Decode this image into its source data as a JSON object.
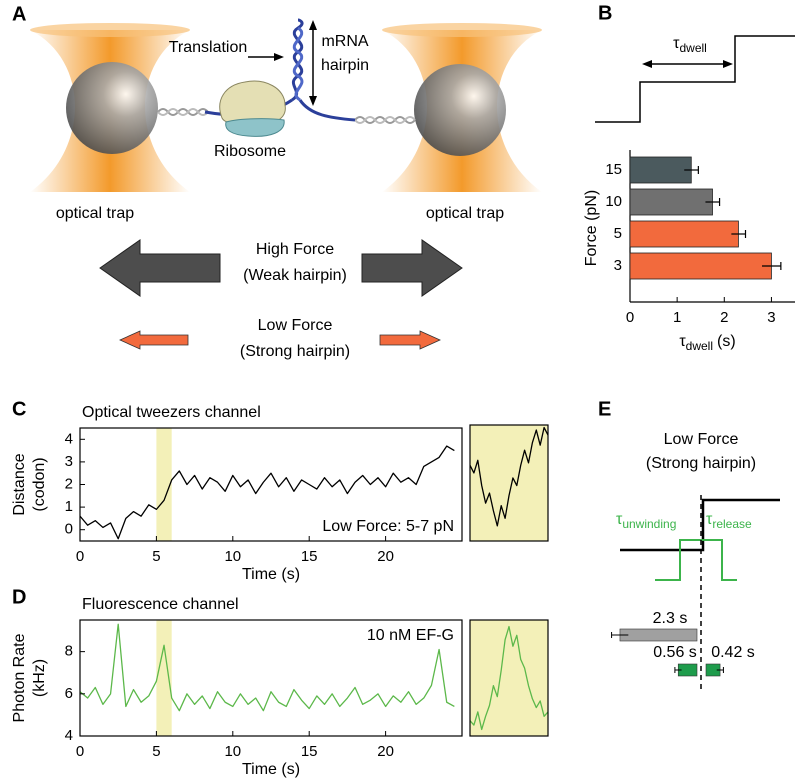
{
  "panel_labels": [
    "A",
    "B",
    "C",
    "D",
    "E"
  ],
  "diagram": {
    "translation": "Translation",
    "mrna_hairpin": [
      "mRNA",
      "hairpin"
    ],
    "ribosome": "Ribosome",
    "trap_labels": [
      "optical trap",
      "optical trap"
    ],
    "high_force": [
      "High Force",
      "(Weak hairpin)"
    ],
    "low_force": [
      "Low Force",
      "(Strong hairpin)"
    ]
  },
  "dwell_schematic": {
    "label": {
      "symbol": "τ",
      "sub": "dwell"
    }
  },
  "schematic_e": {
    "title": [
      "Low Force",
      "(Strong hairpin)"
    ],
    "labels": [
      {
        "symbol": "τ",
        "sub": "unwinding"
      },
      {
        "symbol": "τ",
        "sub": "release"
      }
    ],
    "color": "#3cb44b"
  },
  "chart_data": [
    {
      "type": "bar",
      "orientation": "horizontal",
      "categories": [
        "15",
        "10",
        "5",
        "3"
      ],
      "values": [
        1.3,
        1.75,
        2.3,
        3.0
      ],
      "errors": [
        0.15,
        0.15,
        0.15,
        0.2
      ],
      "colors": [
        "#4b5a5e",
        "#707070",
        "#f26a3d",
        "#f26a3d"
      ],
      "xlim": [
        0,
        3.5
      ],
      "xticks": [
        0,
        1,
        2,
        3
      ],
      "xlabel": {
        "symbol": "τ",
        "sub": "dwell",
        "unit": "(s)"
      },
      "ylabel": "Force (pN)"
    },
    {
      "type": "line",
      "title": "Optical tweezers channel",
      "annotation": "Low Force: 5-7 pN",
      "xlabel": "Time (s)",
      "ylabel": [
        "Distance",
        "(codon)"
      ],
      "xlim": [
        0,
        25
      ],
      "xticks": [
        0,
        5,
        10,
        15,
        20
      ],
      "ylim": [
        -0.5,
        4.5
      ],
      "yticks": [
        0,
        1,
        2,
        3,
        4
      ],
      "highlight": [
        5,
        6
      ],
      "highlight_color": "#f3f0b8",
      "color": "#000000",
      "x": [
        0,
        0.5,
        1,
        1.5,
        2,
        2.5,
        3,
        3.5,
        4,
        4.5,
        5,
        5.5,
        6,
        6.5,
        7,
        7.5,
        8,
        8.5,
        9,
        9.5,
        10,
        10.5,
        11,
        11.5,
        12,
        12.5,
        13,
        13.5,
        14,
        14.5,
        15,
        15.5,
        16,
        16.5,
        17,
        17.5,
        18,
        18.5,
        19,
        19.5,
        20,
        20.5,
        21,
        21.5,
        22,
        22.5,
        23,
        23.5,
        24,
        24.5
      ],
      "values": [
        0.6,
        0.2,
        0.4,
        0.1,
        0.3,
        -0.4,
        0.5,
        0.8,
        0.6,
        1.1,
        0.9,
        1.3,
        2.2,
        2.6,
        2.0,
        2.4,
        1.8,
        2.3,
        2.1,
        1.7,
        2.4,
        1.9,
        2.2,
        1.6,
        2.1,
        2.5,
        1.9,
        2.3,
        1.7,
        2.2,
        2.0,
        1.8,
        2.3,
        1.9,
        2.2,
        1.6,
        2.1,
        2.4,
        2.0,
        2.3,
        1.9,
        2.5,
        2.1,
        2.3,
        2.0,
        2.8,
        3.0,
        3.2,
        3.7,
        3.5
      ]
    },
    {
      "type": "line",
      "xlim": [
        5,
        6
      ],
      "ylim": [
        0,
        4.6
      ],
      "background": "#f3f0b8",
      "color": "#000000",
      "x": [
        5,
        5.05,
        5.1,
        5.15,
        5.2,
        5.25,
        5.3,
        5.35,
        5.4,
        5.45,
        5.5,
        5.55,
        5.6,
        5.65,
        5.7,
        5.75,
        5.8,
        5.85,
        5.9,
        5.95,
        6
      ],
      "values": [
        3.0,
        2.7,
        3.2,
        2.2,
        1.5,
        1.9,
        1.2,
        0.6,
        1.4,
        0.9,
        1.8,
        2.5,
        2.2,
        3.0,
        3.6,
        3.1,
        3.9,
        4.4,
        3.8,
        4.5,
        4.2
      ]
    },
    {
      "type": "line",
      "title": "Fluorescence channel",
      "annotation": "10 nM EF-G",
      "xlabel": "Time (s)",
      "ylabel": [
        "Photon Rate",
        "(kHz)"
      ],
      "xlim": [
        0,
        25
      ],
      "xticks": [
        0,
        5,
        10,
        15,
        20
      ],
      "ylim": [
        4,
        9.5
      ],
      "yticks": [
        4,
        6,
        8
      ],
      "highlight": [
        5,
        6
      ],
      "highlight_color": "#f3f0b8",
      "color": "#5cb84a",
      "x": [
        0,
        0.5,
        1,
        1.5,
        2,
        2.5,
        3,
        3.5,
        4,
        4.5,
        5,
        5.5,
        6,
        6.5,
        7,
        7.5,
        8,
        8.5,
        9,
        9.5,
        10,
        10.5,
        11,
        11.5,
        12,
        12.5,
        13,
        13.5,
        14,
        14.5,
        15,
        15.5,
        16,
        16.5,
        17,
        17.5,
        18,
        18.5,
        19,
        19.5,
        20,
        20.5,
        21,
        21.5,
        22,
        22.5,
        23,
        23.5,
        24,
        24.5
      ],
      "values": [
        6.1,
        5.8,
        6.3,
        5.5,
        6.0,
        9.3,
        5.4,
        6.2,
        5.6,
        5.9,
        6.6,
        8.3,
        5.8,
        5.2,
        6.0,
        5.5,
        5.9,
        5.3,
        6.1,
        5.6,
        5.4,
        6.0,
        5.5,
        5.8,
        5.2,
        6.1,
        5.6,
        5.4,
        6.2,
        5.7,
        5.3,
        5.9,
        5.5,
        6.0,
        5.4,
        5.8,
        6.3,
        5.5,
        5.7,
        6.0,
        5.4,
        5.9,
        5.6,
        6.1,
        5.5,
        5.8,
        6.4,
        8.1,
        5.6,
        5.4
      ]
    },
    {
      "type": "line",
      "xlim": [
        5,
        6
      ],
      "ylim": [
        4.5,
        9.8
      ],
      "background": "#f3f0b8",
      "color": "#5cb84a",
      "x": [
        5,
        5.05,
        5.1,
        5.15,
        5.2,
        5.25,
        5.3,
        5.35,
        5.4,
        5.45,
        5.5,
        5.55,
        5.6,
        5.65,
        5.7,
        5.75,
        5.8,
        5.85,
        5.9,
        5.95,
        6
      ],
      "values": [
        5.2,
        5.0,
        5.6,
        4.8,
        5.4,
        5.9,
        6.8,
        6.3,
        7.5,
        8.9,
        9.5,
        8.6,
        9.1,
        8.0,
        7.6,
        6.8,
        6.2,
        5.8,
        6.1,
        5.4,
        5.6
      ]
    },
    {
      "type": "bar",
      "values": [
        2.3,
        0.56,
        0.42
      ],
      "value_labels": [
        "2.3 s",
        "0.56 s",
        "0.42 s"
      ],
      "errors": [
        0.25,
        0.1,
        0.1
      ],
      "colors": [
        "#a0a0a0",
        "#1e9c4c",
        "#1e9c4c"
      ],
      "label_colors": [
        "#000000",
        "#2a9d3a",
        "#2a9d3a"
      ]
    }
  ]
}
